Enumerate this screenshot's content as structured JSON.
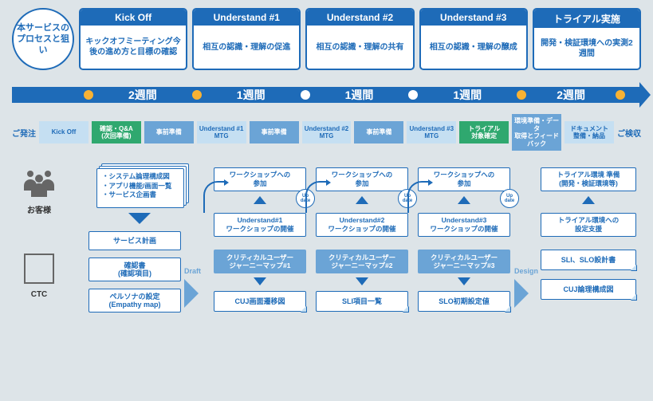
{
  "colors": {
    "primary": "#1e6bb8",
    "light": "#c5dff2",
    "mid": "#6ba4d6",
    "green": "#2fa86f",
    "yellow": "#f9b233",
    "bg": "#dde4e8"
  },
  "service_circle": "本サービスの\nプロセスと狙い",
  "phases": [
    {
      "title": "Kick Off",
      "desc": "キックオフミーティング今後の進め方と目標の確認"
    },
    {
      "title": "Understand #1",
      "desc": "相互の認識・理解の促進"
    },
    {
      "title": "Understand #2",
      "desc": "相互の認識・理解の共有"
    },
    {
      "title": "Understand #3",
      "desc": "相互の認識・理解の醸成"
    },
    {
      "title": "トライアル実施",
      "desc": "開発・検証環境への実測2週間"
    }
  ],
  "timeline": [
    "2週間",
    "1週間",
    "1週間",
    "1週間",
    "2週間"
  ],
  "task_start": "ご発注",
  "task_end": "ご検収",
  "tasks": [
    {
      "label": "Kick Off",
      "style": "blue-light"
    },
    {
      "label": "確認・Q&A\n(次回準備)",
      "style": "green"
    },
    {
      "label": "事前準備",
      "style": "blue"
    },
    {
      "label": "Understand #1\nMTG",
      "style": "blue-light"
    },
    {
      "label": "事前準備",
      "style": "blue"
    },
    {
      "label": "Understand #2\nMTG",
      "style": "blue-light"
    },
    {
      "label": "事前準備",
      "style": "blue"
    },
    {
      "label": "Understand #3\nMTG",
      "style": "blue-light"
    },
    {
      "label": "トライアル\n対象確定",
      "style": "green"
    },
    {
      "label": "環境準備・データ\n取得とフィードバック",
      "style": "blue"
    },
    {
      "label": "ドキュメント\n整備・納品",
      "style": "blue-light"
    }
  ],
  "actors": {
    "customer": "お客様",
    "ctc": "CTC"
  },
  "input_docs": "・システム論理構成図\n・アプリ機能/画面一覧\n・サービス企画書",
  "customer_docs": [
    "サービス計画",
    "確認書\n(確認項目)",
    "ペルソナの設定\n(Empathy map)"
  ],
  "draft_label": "Draft",
  "design_label": "Design",
  "update_label": "Up\ndate",
  "workshops": [
    {
      "join": "ワークショップへの\n参加",
      "hold": "Understand#1\nワークショップの開催",
      "map": "クリティカルユーザー\nジャーニーマップ#1",
      "out": "CUJ画面遷移図"
    },
    {
      "join": "ワークショップへの\n参加",
      "hold": "Understand#2\nワークショップの開催",
      "map": "クリティカルユーザー\nジャーニーマップ#2",
      "out": "SLI項目一覧"
    },
    {
      "join": "ワークショップへの\n参加",
      "hold": "Understand#3\nワークショップの開催",
      "map": "クリティカルユーザー\nジャーニーマップ#3",
      "out": "SLO初期設定値"
    }
  ],
  "trial": {
    "prep": "トライアル環境 準備\n(開発・検証環境等)",
    "support": "トライアル環境への\n設定支援",
    "out1": "SLI、SLO設計書",
    "out2": "CUJ論理構成図"
  }
}
